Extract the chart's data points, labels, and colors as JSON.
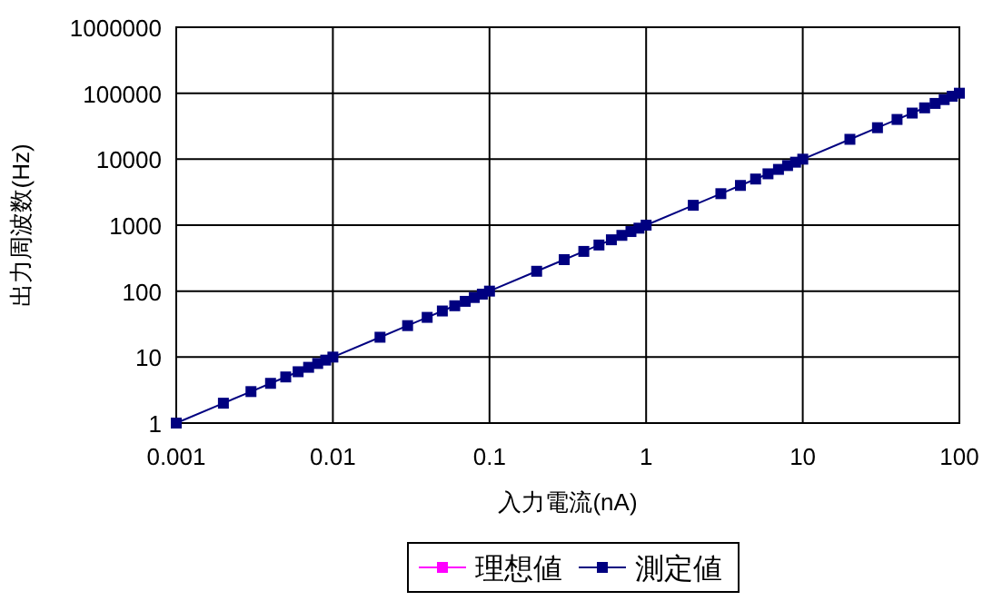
{
  "chart_data": {
    "type": "line",
    "xlabel": "入力電流(nA)",
    "ylabel": "出力周波数(Hz)",
    "log": "xy",
    "xlim": [
      0.001,
      100
    ],
    "ylim": [
      1,
      1000000
    ],
    "xticks": [
      0.001,
      0.01,
      0.1,
      1,
      10,
      100
    ],
    "yticks": [
      1,
      10,
      100,
      1000,
      10000,
      100000,
      1000000
    ],
    "grid": true,
    "legend": "bottom",
    "marker": "square",
    "line_style": "solid",
    "x": [
      0.001,
      0.002,
      0.003,
      0.004,
      0.005,
      0.006,
      0.007,
      0.008,
      0.009,
      0.01,
      0.02,
      0.03,
      0.04,
      0.05,
      0.06,
      0.07,
      0.08,
      0.09,
      0.1,
      0.2,
      0.3,
      0.4,
      0.5,
      0.6,
      0.7,
      0.8,
      0.9,
      1,
      2,
      3,
      4,
      5,
      6,
      7,
      8,
      9,
      10,
      20,
      30,
      40,
      50,
      60,
      70,
      80,
      90,
      100
    ],
    "series": [
      {
        "name": "理想値",
        "color": "#ff00ff",
        "values": [
          null,
          null,
          null,
          null,
          null,
          null,
          null,
          null,
          null,
          null,
          null,
          null,
          null,
          null,
          null,
          null,
          null,
          null,
          null,
          null,
          null,
          null,
          null,
          null,
          null,
          null,
          null,
          null,
          null,
          null,
          null,
          null,
          null,
          null,
          null,
          null,
          null,
          null,
          null,
          null,
          null,
          null,
          null,
          null,
          null,
          null
        ]
      },
      {
        "name": "測定値",
        "color": "#000080",
        "values": [
          1,
          2,
          3,
          4,
          5,
          6,
          7,
          8,
          9,
          10,
          20,
          30,
          40,
          50,
          60,
          70,
          80,
          90,
          100,
          200,
          300,
          400,
          500,
          600,
          700,
          800,
          900,
          1000,
          2000,
          3000,
          4000,
          5000,
          6000,
          7000,
          8000,
          9000,
          10000,
          20000,
          30000,
          40000,
          50000,
          60000,
          70000,
          80000,
          90000,
          100000
        ]
      }
    ]
  }
}
